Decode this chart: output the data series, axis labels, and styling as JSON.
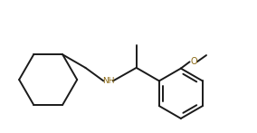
{
  "bg_color": "#ffffff",
  "line_color": "#1a1a1a",
  "nh_color": "#8b6914",
  "o_color": "#8b6914",
  "fig_width": 2.84,
  "fig_height": 1.47,
  "dpi": 100,
  "lw": 1.4
}
